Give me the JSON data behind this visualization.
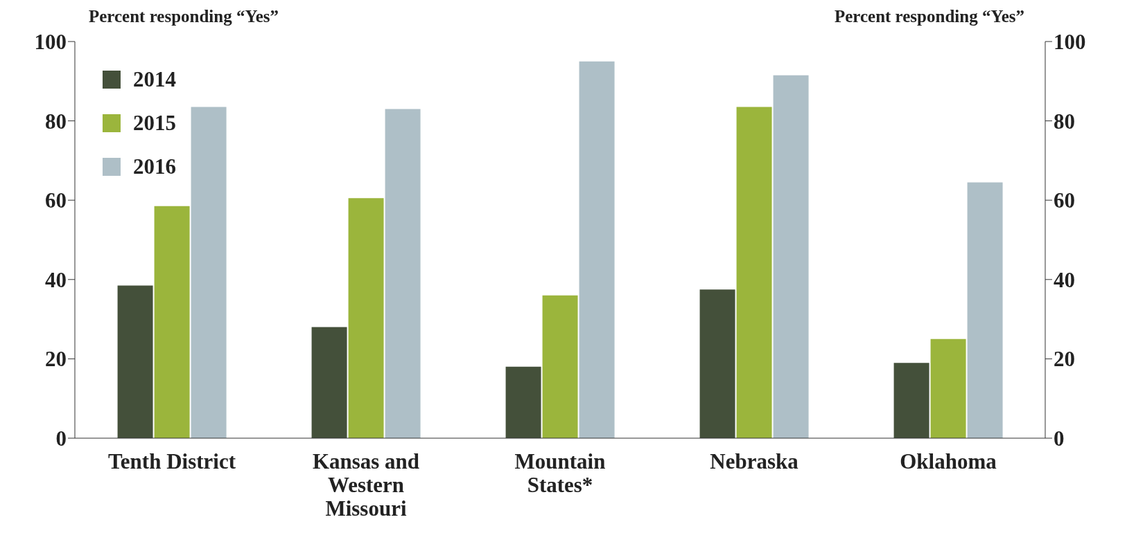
{
  "chart_data": {
    "type": "bar",
    "ylabel": "Percent responding “Yes”",
    "y2label": "Percent responding “Yes”",
    "categories": [
      "Tenth District",
      "Kansas and Western Missouri",
      "Mountain States*",
      "Nebraska",
      "Oklahoma"
    ],
    "series": [
      {
        "name": "2014",
        "color": "#44503a",
        "values": [
          38.5,
          28,
          18,
          37.5,
          19
        ]
      },
      {
        "name": "2015",
        "color": "#9bb53c",
        "values": [
          58.5,
          60.5,
          36,
          83.5,
          25
        ]
      },
      {
        "name": "2016",
        "color": "#aebfc7",
        "values": [
          83.5,
          83,
          95,
          91.5,
          64.5
        ]
      }
    ],
    "ylim": [
      0,
      100
    ],
    "yticks": [
      0,
      20,
      40,
      60,
      80,
      100
    ],
    "y2lim": [
      0,
      100
    ],
    "y2ticks": [
      0,
      20,
      40,
      60,
      80,
      100
    ],
    "grid": false,
    "legend": "top left"
  }
}
